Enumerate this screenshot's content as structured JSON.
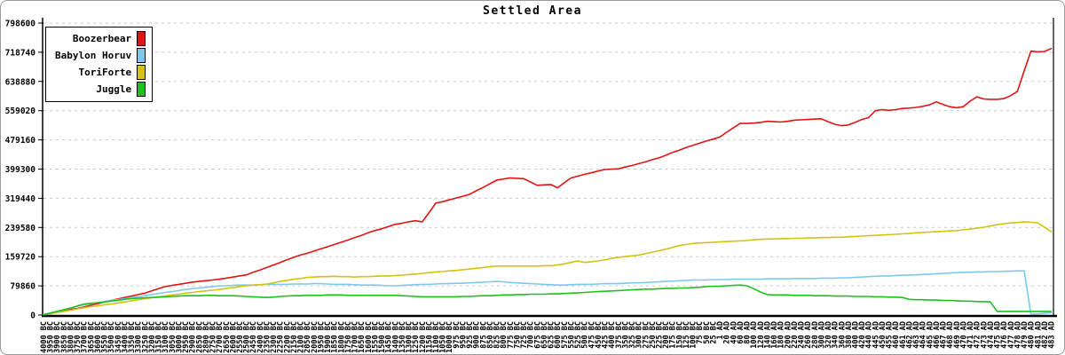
{
  "title": "Settled Area",
  "chart_data": {
    "type": "line",
    "title": "Settled Area",
    "grid": "horizontal-dashed",
    "legend_position": "top-left",
    "ylim": [
      0,
      798600
    ],
    "y_ticks": [
      0,
      79860,
      159720,
      239580,
      319440,
      399300,
      479160,
      559020,
      638880,
      718740,
      798600
    ],
    "x_tick_labels": [
      "4000 BC",
      "3950 BC",
      "3900 BC",
      "3850 BC",
      "3800 BC",
      "3750 BC",
      "3700 BC",
      "3650 BC",
      "3600 BC",
      "3550 BC",
      "3500 BC",
      "3450 BC",
      "3400 BC",
      "3350 BC",
      "3300 BC",
      "3250 BC",
      "3200 BC",
      "3150 BC",
      "3100 BC",
      "3050 BC",
      "3000 BC",
      "2950 BC",
      "2900 BC",
      "2850 BC",
      "2800 BC",
      "2750 BC",
      "2700 BC",
      "2650 BC",
      "2600 BC",
      "2550 BC",
      "2500 BC",
      "2450 BC",
      "2400 BC",
      "2350 BC",
      "2300 BC",
      "2250 BC",
      "2200 BC",
      "2150 BC",
      "2100 BC",
      "2050 BC",
      "2000 BC",
      "1950 BC",
      "1900 BC",
      "1850 BC",
      "1800 BC",
      "1750 BC",
      "1700 BC",
      "1650 BC",
      "1600 BC",
      "1550 BC",
      "1500 BC",
      "1450 BC",
      "1400 BC",
      "1350 BC",
      "1300 BC",
      "1250 BC",
      "1200 BC",
      "1150 BC",
      "1100 BC",
      "1050 BC",
      "1000 BC",
      "975 BC",
      "950 BC",
      "925 BC",
      "900 BC",
      "875 BC",
      "850 BC",
      "825 BC",
      "800 BC",
      "775 BC",
      "750 BC",
      "725 BC",
      "700 BC",
      "675 BC",
      "650 BC",
      "625 BC",
      "600 BC",
      "575 BC",
      "550 BC",
      "525 BC",
      "500 BC",
      "475 BC",
      "450 BC",
      "425 BC",
      "400 BC",
      "375 BC",
      "350 BC",
      "325 BC",
      "300 BC",
      "275 BC",
      "250 BC",
      "225 BC",
      "200 BC",
      "175 BC",
      "150 BC",
      "125 BC",
      "100 BC",
      "75 BC",
      "50 BC",
      "25 BC",
      "1 AD",
      "20 AD",
      "40 AD",
      "60 AD",
      "80 AD",
      "100 AD",
      "120 AD",
      "140 AD",
      "160 AD",
      "180 AD",
      "200 AD",
      "220 AD",
      "240 AD",
      "260 AD",
      "280 AD",
      "300 AD",
      "320 AD",
      "340 AD",
      "360 AD",
      "380 AD",
      "400 AD",
      "420 AD",
      "440 AD",
      "445 AD",
      "450 AD",
      "455 AD",
      "460 AD",
      "461 AD",
      "462 AD",
      "463 AD",
      "464 AD",
      "465 AD",
      "466 AD",
      "467 AD",
      "468 AD",
      "469 AD",
      "470 AD",
      "471 AD",
      "472 AD",
      "473 AD",
      "474 AD",
      "475 AD",
      "476 AD",
      "477 AD",
      "478 AD",
      "479 AD",
      "480 AD",
      "481 AD",
      "482 AD",
      "483 AD"
    ],
    "series": [
      {
        "name": "Boozerbear",
        "color": "#e01414",
        "values": [
          1000,
          4000,
          8000,
          11000,
          15000,
          18000,
          22000,
          27000,
          31000,
          36000,
          40000,
          44000,
          48000,
          52000,
          56000,
          60000,
          66000,
          72000,
          78000,
          81000,
          84000,
          87000,
          90000,
          92000,
          94000,
          96000,
          98000,
          101000,
          104000,
          107000,
          110000,
          117000,
          123000,
          130000,
          137000,
          144000,
          151000,
          158000,
          164000,
          169000,
          175000,
          181000,
          187000,
          193000,
          199000,
          205000,
          212000,
          218000,
          225000,
          231000,
          236000,
          242000,
          248000,
          251000,
          255000,
          258000,
          255000,
          280000,
          306000,
          310000,
          315000,
          320000,
          325000,
          330000,
          340000,
          349000,
          359000,
          369000,
          372000,
          375000,
          374000,
          373000,
          364000,
          355000,
          356000,
          357000,
          348000,
          362000,
          375000,
          380000,
          385000,
          389000,
          394000,
          398000,
          399000,
          400000,
          405000,
          409000,
          414000,
          419000,
          425000,
          430000,
          437000,
          445000,
          451000,
          458000,
          464000,
          470000,
          476000,
          481000,
          487000,
          500000,
          512000,
          524000,
          524000,
          525000,
          527000,
          530000,
          529000,
          528000,
          530000,
          533000,
          534000,
          535000,
          536000,
          537000,
          529000,
          522000,
          518000,
          520000,
          527000,
          535000,
          540000,
          559000,
          562000,
          560000,
          562000,
          565000,
          566000,
          568000,
          571000,
          575000,
          583000,
          576000,
          570000,
          567000,
          570000,
          585000,
          597000,
          591000,
          590000,
          590000,
          592000,
          600000,
          612000,
          668000,
          722000,
          720000,
          721000,
          729000
        ]
      },
      {
        "name": "Babylon Horuv",
        "color": "#7ec8ed",
        "values": [
          2000,
          6000,
          10000,
          15000,
          19000,
          24000,
          28000,
          31000,
          34000,
          37000,
          40000,
          42000,
          45000,
          48000,
          50000,
          53000,
          56000,
          59000,
          62000,
          64000,
          67000,
          70000,
          72000,
          74000,
          76000,
          78000,
          80000,
          80000,
          81000,
          82000,
          82000,
          82000,
          83000,
          84000,
          84000,
          84000,
          84000,
          85000,
          85000,
          85000,
          86000,
          86000,
          85000,
          84000,
          84000,
          84000,
          83000,
          82000,
          82000,
          82000,
          81000,
          80000,
          80000,
          81000,
          82000,
          83000,
          84000,
          84000,
          85000,
          86000,
          86000,
          87000,
          87000,
          88000,
          89000,
          90000,
          91000,
          92000,
          91000,
          89000,
          88000,
          87000,
          86000,
          85000,
          84000,
          83000,
          82000,
          82000,
          83000,
          84000,
          84000,
          84000,
          85000,
          86000,
          86000,
          86000,
          87000,
          88000,
          88000,
          89000,
          90000,
          91000,
          92000,
          93000,
          94000,
          95000,
          96000,
          96000,
          96000,
          97000,
          97000,
          97000,
          98000,
          98000,
          98000,
          98000,
          98000,
          99000,
          99000,
          99000,
          99000,
          100000,
          100000,
          100000,
          100000,
          101000,
          101000,
          101000,
          102000,
          102000,
          103000,
          104000,
          105000,
          106000,
          107000,
          107000,
          108000,
          109000,
          109000,
          110000,
          111000,
          112000,
          113000,
          114000,
          115000,
          116000,
          117000,
          117000,
          118000,
          118000,
          119000,
          119000,
          120000,
          120000,
          121000,
          121000,
          3000,
          3000,
          5000,
          6000
        ]
      },
      {
        "name": "ToriForte",
        "color": "#d2c315",
        "values": [
          1000,
          4000,
          7000,
          10000,
          13000,
          17000,
          20000,
          23000,
          25000,
          28000,
          30000,
          33000,
          36000,
          39000,
          42000,
          45000,
          47000,
          50000,
          52000,
          55000,
          57000,
          60000,
          62000,
          64000,
          66000,
          68000,
          70000,
          73000,
          75000,
          78000,
          80000,
          82000,
          83000,
          85000,
          88000,
          92000,
          95000,
          98000,
          100000,
          103000,
          104000,
          105000,
          105000,
          106000,
          105000,
          105000,
          104000,
          105000,
          105000,
          106000,
          107000,
          107000,
          108000,
          109000,
          111000,
          112000,
          114000,
          116000,
          118000,
          119000,
          121000,
          122000,
          124000,
          126000,
          128000,
          130000,
          132000,
          134000,
          134000,
          134000,
          134000,
          134000,
          134000,
          134000,
          135000,
          135000,
          137000,
          140000,
          144000,
          148000,
          144000,
          146000,
          148000,
          151000,
          155000,
          158000,
          160000,
          162000,
          164000,
          168000,
          172000,
          176000,
          180000,
          185000,
          190000,
          193000,
          196000,
          197000,
          198000,
          199000,
          200000,
          201000,
          202000,
          203000,
          204000,
          206000,
          207000,
          208000,
          208000,
          209000,
          209000,
          210000,
          210000,
          211000,
          211000,
          212000,
          212000,
          213000,
          213000,
          214000,
          215000,
          216000,
          217000,
          218000,
          219000,
          220000,
          221000,
          222000,
          223000,
          225000,
          226000,
          227000,
          228000,
          229000,
          230000,
          231000,
          233000,
          235000,
          238000,
          240000,
          244000,
          247000,
          250000,
          252000,
          253000,
          255000,
          254000,
          252000,
          240000,
          228000
        ]
      },
      {
        "name": "Juggle",
        "color": "#1fc11f",
        "values": [
          1000,
          5000,
          10000,
          14000,
          19000,
          25000,
          30000,
          32000,
          34000,
          36000,
          38000,
          40000,
          43000,
          45000,
          46000,
          47000,
          48000,
          49000,
          50000,
          51000,
          52000,
          53000,
          53000,
          53000,
          54000,
          54000,
          53000,
          53000,
          53000,
          52000,
          51000,
          50000,
          49000,
          48000,
          49000,
          51000,
          52000,
          53000,
          53000,
          54000,
          54000,
          54000,
          55000,
          55000,
          55000,
          54000,
          54000,
          54000,
          54000,
          54000,
          54000,
          54000,
          54000,
          53000,
          52000,
          51000,
          50000,
          50000,
          50000,
          50000,
          50000,
          50000,
          51000,
          51000,
          52000,
          53000,
          53000,
          54000,
          55000,
          55000,
          56000,
          56000,
          57000,
          57000,
          57000,
          58000,
          58000,
          59000,
          60000,
          61000,
          62000,
          63000,
          64000,
          65000,
          66000,
          67000,
          68000,
          69000,
          70000,
          71000,
          71000,
          72000,
          73000,
          73000,
          74000,
          74000,
          75000,
          76000,
          78000,
          79000,
          79000,
          80000,
          81000,
          82000,
          80000,
          72000,
          63000,
          56000,
          55000,
          55000,
          55000,
          54000,
          54000,
          54000,
          53000,
          53000,
          53000,
          52000,
          52000,
          52000,
          51000,
          51000,
          51000,
          50000,
          50000,
          49000,
          49000,
          48000,
          43000,
          42000,
          42000,
          41000,
          41000,
          40000,
          40000,
          39000,
          38000,
          38000,
          37000,
          37000,
          36000,
          10000,
          10000,
          10000,
          10000,
          10000,
          10000,
          10000,
          10000,
          10000
        ]
      }
    ]
  }
}
